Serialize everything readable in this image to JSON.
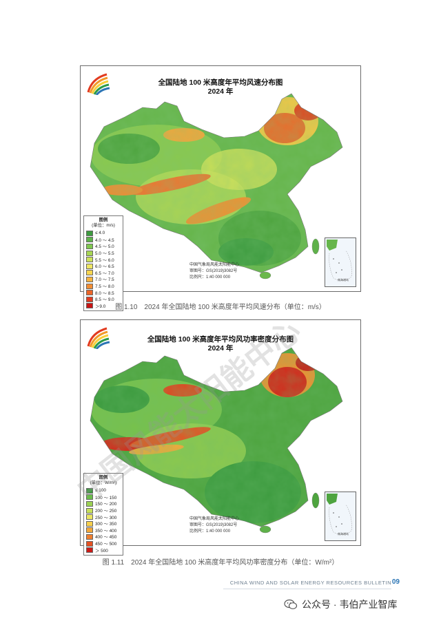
{
  "maps": [
    {
      "title_line1": "全国陆地 100 米高度年平均风速分布图",
      "title_line2": "2024 年",
      "legend_title": "图例",
      "legend_unit": "(单位：m/s)",
      "legend_items": [
        {
          "label": "≤ 4.0",
          "color": "#3d9b3f"
        },
        {
          "label": "4.0 ～ 4.5",
          "color": "#5db34a"
        },
        {
          "label": "4.5 ～ 5.0",
          "color": "#7fc74f"
        },
        {
          "label": "5.0 ～ 5.5",
          "color": "#a7d653"
        },
        {
          "label": "5.5 ～ 6.0",
          "color": "#cde25a"
        },
        {
          "label": "6.0 ～ 6.5",
          "color": "#eee663"
        },
        {
          "label": "6.5 ～ 7.0",
          "color": "#f7d54f"
        },
        {
          "label": "7.0 ～ 7.5",
          "color": "#f6b23e"
        },
        {
          "label": "7.5 ～ 8.0",
          "color": "#f28d33"
        },
        {
          "label": "8.0 ～ 8.5",
          "color": "#ec6528"
        },
        {
          "label": "8.5 ～ 9.0",
          "color": "#e23b1f"
        },
        {
          "label": "＞9.0",
          "color": "#c81414"
        }
      ],
      "credit_org": "中国气象局风能太阳能中心",
      "credit_review": "审图号：GS(2019)3082号",
      "credit_scale": "比例尺：1:40 000 000",
      "inset_label": "南海诸岛",
      "caption": "图 1.10　2024 年全国陆地 100 米高度年平均风速分布（单位：m/s）"
    },
    {
      "title_line1": "全国陆地 100 米高度年平均风功率密度分布图",
      "title_line2": "2024 年",
      "legend_title": "图例",
      "legend_unit": "(单位：W/m²)",
      "legend_items": [
        {
          "label": "≤ 100",
          "color": "#3d9b3f"
        },
        {
          "label": "100 ～ 150",
          "color": "#6cbd4c"
        },
        {
          "label": "150 ～ 200",
          "color": "#9bd152"
        },
        {
          "label": "200 ～ 250",
          "color": "#c7e05a"
        },
        {
          "label": "250 ～ 300",
          "color": "#ebe663"
        },
        {
          "label": "300 ～ 350",
          "color": "#f6d04d"
        },
        {
          "label": "350 ～ 400",
          "color": "#f4a93a"
        },
        {
          "label": "400 ～ 450",
          "color": "#ef7f2f"
        },
        {
          "label": "450 ～ 500",
          "color": "#e55223"
        },
        {
          "label": "＞ 500",
          "color": "#cc1a16"
        }
      ],
      "credit_org": "中国气象局风能太阳能中心",
      "credit_review": "审图号：GS(2019)3082号",
      "credit_scale": "比例尺：1:40 000 000",
      "inset_label": "南海诸岛",
      "caption": "图 1.11　2024 年全国陆地 100 米高度年平均风功率密度分布（单位：W/m²）"
    }
  ],
  "footer": {
    "bulletin": "CHINA WIND AND SOLAR ENERGY RESOURCES BULLETIN",
    "page_number": "09"
  },
  "watermark_account": "公众号 · 韦伯产业智库",
  "watermark_diagonal": "中国风能太阳能中心",
  "colors": {
    "land_base": "#5fb14a",
    "high": "#e8452a",
    "mid": "#f2b33e",
    "sea": "#eef4fa",
    "caption_text": "#555555",
    "page_number": "#2b75b5"
  }
}
